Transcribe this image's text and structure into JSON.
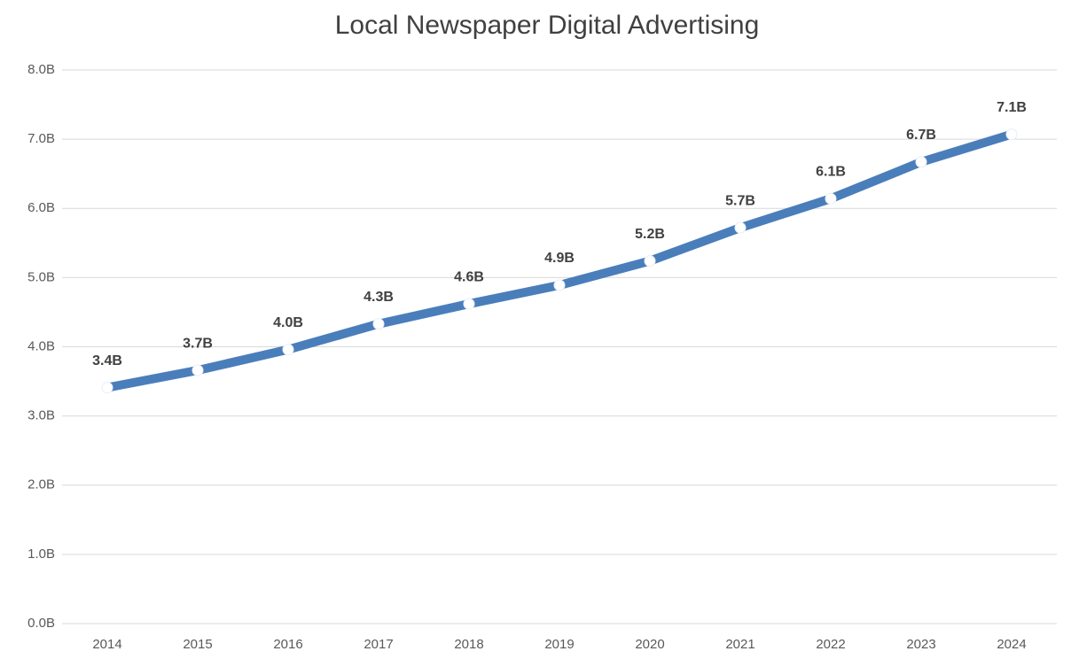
{
  "chart_data": {
    "type": "line",
    "title": "Local Newspaper Digital Advertising",
    "categories": [
      "2014",
      "2015",
      "2016",
      "2017",
      "2018",
      "2019",
      "2020",
      "2021",
      "2022",
      "2023",
      "2024"
    ],
    "series": [
      {
        "color": "#4a7ebb",
        "values": [
          3.41,
          3.66,
          3.96,
          4.33,
          4.62,
          4.89,
          5.24,
          5.72,
          6.14,
          6.67,
          7.07
        ],
        "value_labels": [
          "3.4B",
          "3.7B",
          "4.0B",
          "4.3B",
          "4.6B",
          "4.9B",
          "5.2B",
          "5.7B",
          "6.1B",
          "6.7B",
          "7.1B"
        ]
      }
    ],
    "ylim": [
      0,
      8
    ],
    "yticks": [
      {
        "value": 0,
        "label": "0.0B"
      },
      {
        "value": 1,
        "label": "1.0B"
      },
      {
        "value": 2,
        "label": "2.0B"
      },
      {
        "value": 3,
        "label": "3.0B"
      },
      {
        "value": 4,
        "label": "4.0B"
      },
      {
        "value": 5,
        "label": "5.0B"
      },
      {
        "value": 6,
        "label": "6.0B"
      },
      {
        "value": 7,
        "label": "7.0B"
      },
      {
        "value": 8,
        "label": "8.0B"
      }
    ],
    "grid": true
  }
}
